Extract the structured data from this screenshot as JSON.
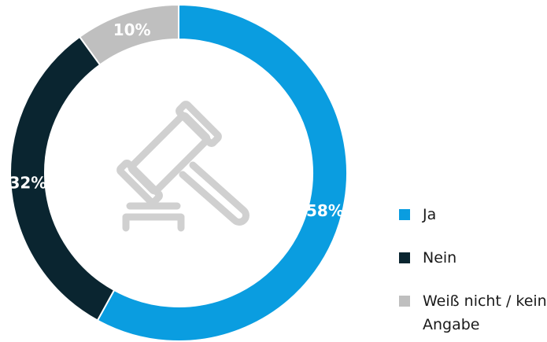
{
  "chart_data": {
    "type": "donut",
    "categories": [
      "Ja",
      "Nein",
      "Weiß nicht / keine Angabe"
    ],
    "values": [
      58,
      32,
      10
    ],
    "value_labels": [
      "58%",
      "32%",
      "10%"
    ],
    "colors": [
      "#0a9de0",
      "#0a2530",
      "#bfbfbf"
    ]
  }
}
